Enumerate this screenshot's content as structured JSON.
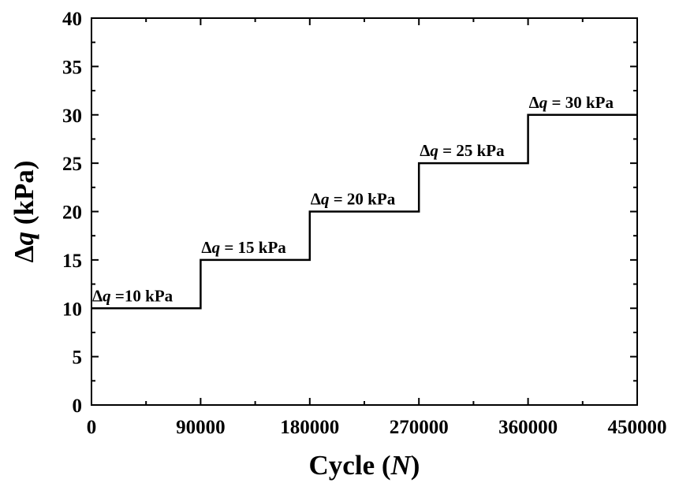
{
  "chart_data": {
    "type": "line",
    "xlabel": "Cycle (N)",
    "xlabel_parts": {
      "prefix": "Cycle (",
      "var": "N",
      "suffix": ")"
    },
    "ylabel": "Δq (kPa)",
    "ylabel_parts": {
      "delta": "Δ",
      "var": "q",
      "suffix": " (kPa)"
    },
    "xlim": [
      0,
      450000
    ],
    "ylim": [
      0,
      40
    ],
    "x_ticks": [
      "0",
      "90000",
      "180000",
      "270000",
      "360000",
      "450000"
    ],
    "y_ticks": [
      "0",
      "5",
      "10",
      "15",
      "20",
      "25",
      "30",
      "35",
      "40"
    ],
    "grid": false,
    "series": [
      {
        "x": [
          0,
          90000,
          90000,
          180000,
          180000,
          270000,
          270000,
          360000,
          360000,
          450000
        ],
        "y": [
          10,
          10,
          15,
          15,
          20,
          20,
          25,
          25,
          30,
          30
        ]
      }
    ],
    "annotations": [
      {
        "text": "Δq =10 kPa",
        "x": 0,
        "y": 10
      },
      {
        "text": "Δq = 15 kPa",
        "x": 90000,
        "y": 15
      },
      {
        "text": "Δq = 20 kPa",
        "x": 180000,
        "y": 20
      },
      {
        "text": "Δq = 25 kPa",
        "x": 270000,
        "y": 25
      },
      {
        "text": "Δq = 30 kPa",
        "x": 360000,
        "y": 30
      }
    ]
  }
}
